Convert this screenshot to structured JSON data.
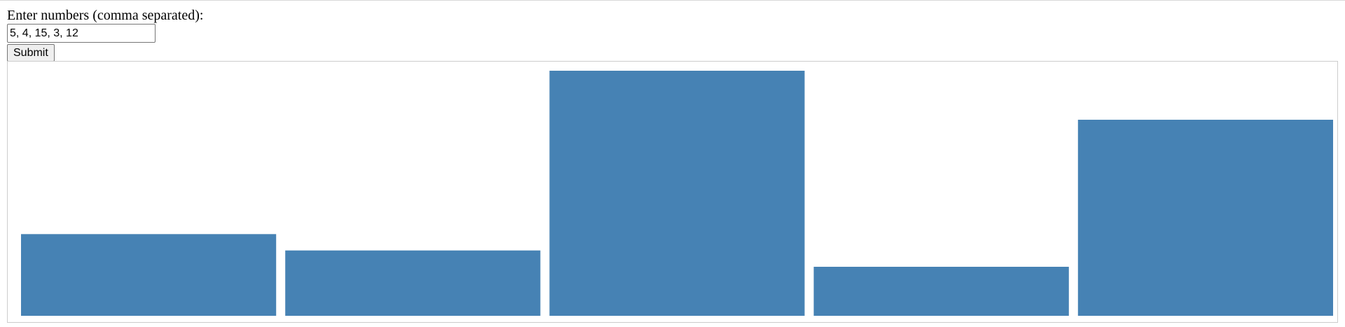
{
  "form": {
    "label": "Enter numbers (comma separated):",
    "input_value": "5, 4, 15, 3, 12",
    "submit_label": "Submit"
  },
  "chart_data": {
    "type": "bar",
    "categories": [
      "",
      "",
      "",
      "",
      ""
    ],
    "values": [
      5,
      4,
      15,
      3,
      12
    ],
    "bar_color": "#4682b4",
    "title": "",
    "xlabel": "",
    "ylabel": "",
    "grid": false
  }
}
